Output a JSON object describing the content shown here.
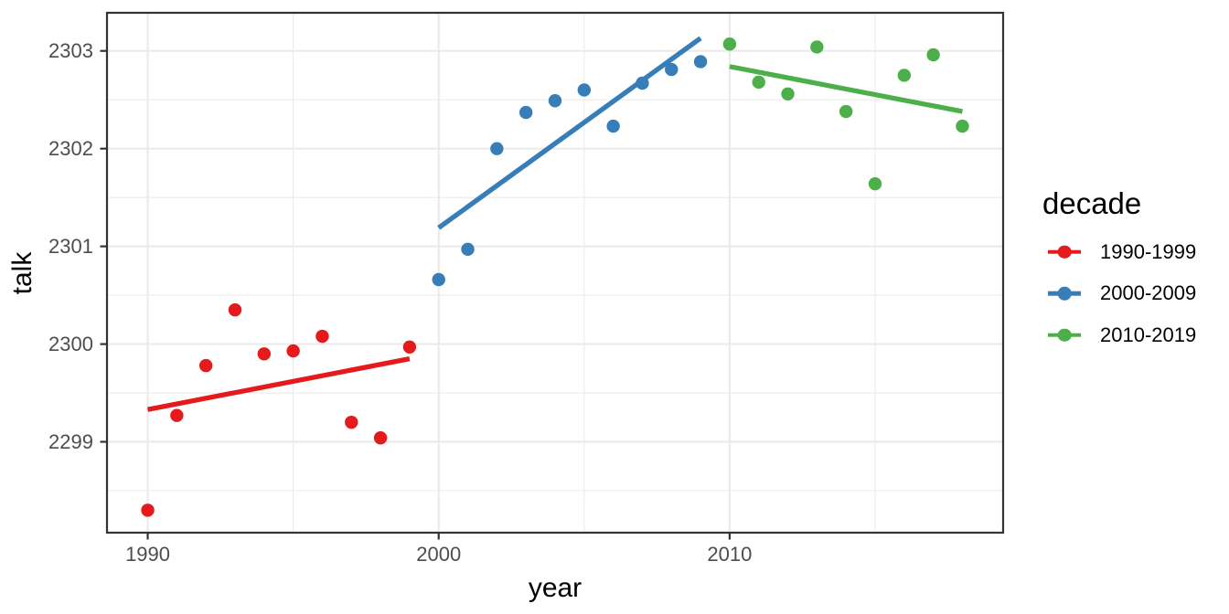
{
  "chart_data": {
    "type": "scatter",
    "title": "",
    "xlabel": "year",
    "ylabel": "talk",
    "legend": {
      "title": "decade",
      "position": "right"
    },
    "x_ticks": [
      1990,
      2000,
      2010
    ],
    "x_minor_ticks": [
      1995,
      2005,
      2015
    ],
    "y_ticks": [
      2299,
      2300,
      2301,
      2302,
      2303
    ],
    "y_minor_ticks": [
      2298.5,
      2299.5,
      2300.5,
      2301.5,
      2302.5
    ],
    "xlim": [
      1988.6,
      2019.4
    ],
    "ylim": [
      2298.07,
      2303.39
    ],
    "grid": "major+minor",
    "series": [
      {
        "name": "1990-1999",
        "color": "#E41A1C",
        "x": [
          1990,
          1991,
          1992,
          1993,
          1994,
          1995,
          1996,
          1997,
          1998,
          1999
        ],
        "y": [
          2298.3,
          2299.27,
          2299.78,
          2300.35,
          2299.9,
          2299.93,
          2300.08,
          2299.2,
          2299.04,
          2299.97
        ],
        "trend_x": [
          1990,
          1999
        ],
        "trend_y": [
          2299.33,
          2299.85
        ]
      },
      {
        "name": "2000-2009",
        "color": "#377EB8",
        "x": [
          2000,
          2001,
          2002,
          2003,
          2004,
          2005,
          2006,
          2007,
          2008,
          2009
        ],
        "y": [
          2300.66,
          2300.97,
          2302.0,
          2302.37,
          2302.49,
          2302.6,
          2302.23,
          2302.67,
          2302.81,
          2302.89
        ],
        "trend_x": [
          2000,
          2009
        ],
        "trend_y": [
          2301.19,
          2303.13
        ]
      },
      {
        "name": "2010-2019",
        "color": "#4DAF4A",
        "x": [
          2010,
          2011,
          2012,
          2013,
          2014,
          2015,
          2016,
          2017,
          2018
        ],
        "y": [
          2303.07,
          2302.68,
          2302.56,
          2303.04,
          2302.38,
          2301.64,
          2302.75,
          2302.96,
          2302.23
        ],
        "trend_x": [
          2010,
          2018
        ],
        "trend_y": [
          2302.84,
          2302.38
        ]
      }
    ],
    "colors": {
      "background": "#FFFFFF",
      "grid": "#EBEBEB",
      "panel_border": "#333333",
      "tick_text": "#4D4D4D",
      "title_text": "#000000"
    }
  }
}
